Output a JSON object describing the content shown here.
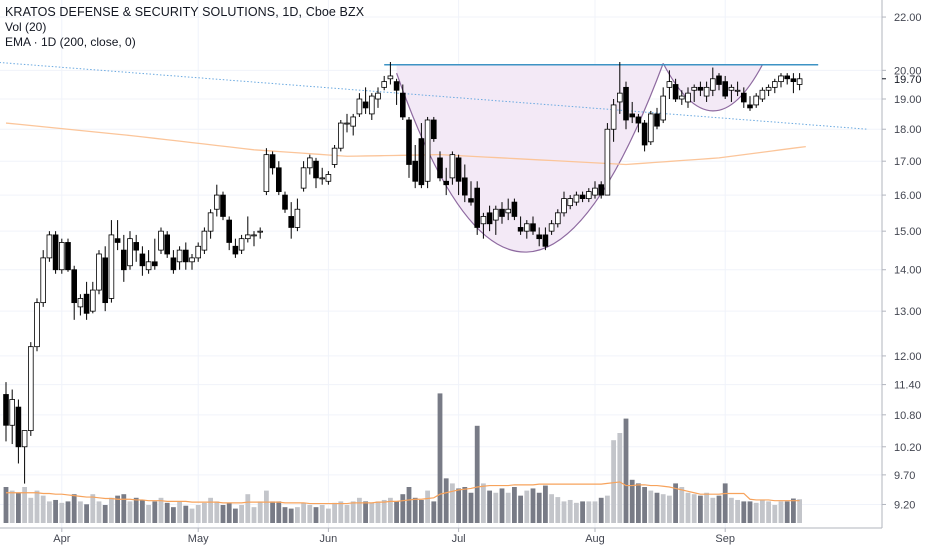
{
  "legend": {
    "title": "KRATOS DEFENSE & SECURITY SOLUTIONS, 1D, Cboe BZX",
    "vol": "Vol (20)",
    "ema": "EMA · 1D (200, close, 0)"
  },
  "colors": {
    "up_candle_fill": "#ffffff",
    "down_candle_fill": "#000000",
    "candle_border": "#000000",
    "volume_up": "#c3c5ca",
    "volume_down": "#787b86",
    "volume_ma": "#f7a35c",
    "ema200": "#fbc59a",
    "resistance": "#3d93c4",
    "trendline": "#6aa9e0",
    "cup_fill": "#f3e9f6",
    "cup_stroke": "#8e6aa0"
  },
  "chart_data": {
    "type": "candlestick",
    "title": "KRATOS DEFENSE & SECURITY SOLUTIONS, 1D, Cboe BZX",
    "scale": "log",
    "ylim": [
      8.9,
      22.6
    ],
    "y_ticks": [
      "22.00",
      "20.00",
      "19.00",
      "18.00",
      "17.00",
      "16.00",
      "15.00",
      "14.00",
      "13.00",
      "12.00",
      "11.40",
      "10.80",
      "10.20",
      "9.70",
      "9.20"
    ],
    "last_price": "19.70",
    "x_ticks": [
      "Apr",
      "May",
      "Jun",
      "Jul",
      "Aug",
      "Sep"
    ],
    "grid": true,
    "candles": [
      [
        11.2,
        11.45,
        10.3,
        10.6
      ],
      [
        10.6,
        11.3,
        10.25,
        11.1
      ],
      [
        10.95,
        11.1,
        9.9,
        10.2
      ],
      [
        10.2,
        10.4,
        9.55,
        10.5
      ],
      [
        10.5,
        12.3,
        10.4,
        12.2
      ],
      [
        12.2,
        13.3,
        12.1,
        13.2
      ],
      [
        13.2,
        14.5,
        13.1,
        14.3
      ],
      [
        14.3,
        15.0,
        14.2,
        14.9
      ],
      [
        14.9,
        15.0,
        13.9,
        14.0
      ],
      [
        14.0,
        14.8,
        13.9,
        14.7
      ],
      [
        14.7,
        14.8,
        13.95,
        14.0
      ],
      [
        14.0,
        14.1,
        12.8,
        13.2
      ],
      [
        13.1,
        13.4,
        12.9,
        13.3
      ],
      [
        13.4,
        13.7,
        12.8,
        12.95
      ],
      [
        13.0,
        13.7,
        12.95,
        13.5
      ],
      [
        13.5,
        14.5,
        13.4,
        14.4
      ],
      [
        14.3,
        14.6,
        13.0,
        13.2
      ],
      [
        13.3,
        15.3,
        13.2,
        14.9
      ],
      [
        14.8,
        15.3,
        14.5,
        14.7
      ],
      [
        14.5,
        14.9,
        13.7,
        14.0
      ],
      [
        14.1,
        15.0,
        14.0,
        14.8
      ],
      [
        14.7,
        14.9,
        14.2,
        14.5
      ],
      [
        14.4,
        14.6,
        13.85,
        14.1
      ],
      [
        14.0,
        14.5,
        13.9,
        14.2
      ],
      [
        14.2,
        14.8,
        14.0,
        14.1
      ],
      [
        14.5,
        15.1,
        14.4,
        15.0
      ],
      [
        14.9,
        15.0,
        14.3,
        14.4
      ],
      [
        14.3,
        14.5,
        13.9,
        14.0
      ],
      [
        14.2,
        14.6,
        14.0,
        14.5
      ],
      [
        14.5,
        14.7,
        14.0,
        14.2
      ],
      [
        14.2,
        14.4,
        14.0,
        14.3
      ],
      [
        14.3,
        14.7,
        14.2,
        14.6
      ],
      [
        14.5,
        15.1,
        14.4,
        15.0
      ],
      [
        15.0,
        15.6,
        14.8,
        15.5
      ],
      [
        15.6,
        16.3,
        15.4,
        16.0
      ],
      [
        16.0,
        16.1,
        15.3,
        15.4
      ],
      [
        15.3,
        15.4,
        14.5,
        14.7
      ],
      [
        14.6,
        14.8,
        14.3,
        14.4
      ],
      [
        14.5,
        14.9,
        14.4,
        14.8
      ],
      [
        14.8,
        15.4,
        14.7,
        14.9
      ],
      [
        14.9,
        15.0,
        14.6,
        14.9
      ],
      [
        15.0,
        15.1,
        14.8,
        15.0
      ],
      [
        16.1,
        17.4,
        16.0,
        17.2
      ],
      [
        17.2,
        17.3,
        16.6,
        16.8
      ],
      [
        16.8,
        17.0,
        16.0,
        16.1
      ],
      [
        16.0,
        16.1,
        15.5,
        15.6
      ],
      [
        15.4,
        15.8,
        14.8,
        15.1
      ],
      [
        15.1,
        15.9,
        15.0,
        15.6
      ],
      [
        16.2,
        17.0,
        16.1,
        16.8
      ],
      [
        16.8,
        17.2,
        16.6,
        17.1
      ],
      [
        17.0,
        17.1,
        16.2,
        16.5
      ],
      [
        16.5,
        16.8,
        16.3,
        16.5
      ],
      [
        16.4,
        16.7,
        16.3,
        16.6
      ],
      [
        16.9,
        17.5,
        16.8,
        17.4
      ],
      [
        17.4,
        18.3,
        17.3,
        18.2
      ],
      [
        18.2,
        18.5,
        17.9,
        18.2
      ],
      [
        18.1,
        18.5,
        17.8,
        18.4
      ],
      [
        18.5,
        19.2,
        18.4,
        19.0
      ],
      [
        18.9,
        19.4,
        18.5,
        18.7
      ],
      [
        18.5,
        19.2,
        18.3,
        19.1
      ],
      [
        19.0,
        19.4,
        18.7,
        19.2
      ],
      [
        19.4,
        19.8,
        19.3,
        19.6
      ],
      [
        19.7,
        20.3,
        19.5,
        19.8
      ],
      [
        19.6,
        19.7,
        18.8,
        19.3
      ],
      [
        19.2,
        19.5,
        18.3,
        18.4
      ],
      [
        18.3,
        18.4,
        16.5,
        16.9
      ],
      [
        17.0,
        17.5,
        16.2,
        16.4
      ],
      [
        17.7,
        18.2,
        16.2,
        16.3
      ],
      [
        16.4,
        18.4,
        16.2,
        18.3
      ],
      [
        18.3,
        18.4,
        17.6,
        17.7
      ],
      [
        17.1,
        17.3,
        16.4,
        16.5
      ],
      [
        16.4,
        16.8,
        16.0,
        16.3
      ],
      [
        16.5,
        17.3,
        16.3,
        17.2
      ],
      [
        17.1,
        17.2,
        16.0,
        16.4
      ],
      [
        16.5,
        16.9,
        15.8,
        16.0
      ],
      [
        15.9,
        16.4,
        15.7,
        15.8
      ],
      [
        16.2,
        16.4,
        14.9,
        15.1
      ],
      [
        15.2,
        15.5,
        14.8,
        15.4
      ],
      [
        15.5,
        15.7,
        15.0,
        15.2
      ],
      [
        15.3,
        15.7,
        14.9,
        15.6
      ],
      [
        15.6,
        15.8,
        15.2,
        15.4
      ],
      [
        15.5,
        15.9,
        15.3,
        15.6
      ],
      [
        15.8,
        15.9,
        15.3,
        15.4
      ],
      [
        15.1,
        15.4,
        14.9,
        15.0
      ],
      [
        15.0,
        15.3,
        14.8,
        15.2
      ],
      [
        15.2,
        15.4,
        14.9,
        15.0
      ],
      [
        14.9,
        15.1,
        14.6,
        14.8
      ],
      [
        14.9,
        15.1,
        14.5,
        14.6
      ],
      [
        15.0,
        15.3,
        14.9,
        15.2
      ],
      [
        15.2,
        15.6,
        15.1,
        15.5
      ],
      [
        15.5,
        16.1,
        15.4,
        15.9
      ],
      [
        15.7,
        16.0,
        15.6,
        15.9
      ],
      [
        15.8,
        16.1,
        15.7,
        16.0
      ],
      [
        16.0,
        16.1,
        15.8,
        15.9
      ],
      [
        15.9,
        16.2,
        15.8,
        16.1
      ],
      [
        16.0,
        16.4,
        15.9,
        16.2
      ],
      [
        16.3,
        16.4,
        15.9,
        16.0
      ],
      [
        16.0,
        18.2,
        16.0,
        18.0
      ],
      [
        18.0,
        19.0,
        17.6,
        18.8
      ],
      [
        18.9,
        20.3,
        18.5,
        19.2
      ],
      [
        19.4,
        19.6,
        18.0,
        18.3
      ],
      [
        18.5,
        18.9,
        18.2,
        18.4
      ],
      [
        18.4,
        18.5,
        17.9,
        18.2
      ],
      [
        18.2,
        18.3,
        17.3,
        17.5
      ],
      [
        17.6,
        18.6,
        17.5,
        18.5
      ],
      [
        18.5,
        18.7,
        18.0,
        18.1
      ],
      [
        18.3,
        19.4,
        18.2,
        19.1
      ],
      [
        19.4,
        20.0,
        19.0,
        19.6
      ],
      [
        19.5,
        19.7,
        18.9,
        19.0
      ],
      [
        19.0,
        19.3,
        18.8,
        19.1
      ],
      [
        18.9,
        19.4,
        18.7,
        19.2
      ],
      [
        19.3,
        19.5,
        18.9,
        19.4
      ],
      [
        19.4,
        19.6,
        19.1,
        19.3
      ],
      [
        19.1,
        19.6,
        18.9,
        19.4
      ],
      [
        19.3,
        20.1,
        19.1,
        19.7
      ],
      [
        19.8,
        19.9,
        19.3,
        19.5
      ],
      [
        19.6,
        19.8,
        19.0,
        19.1
      ],
      [
        19.3,
        19.5,
        18.9,
        19.4
      ],
      [
        19.3,
        19.6,
        19.1,
        19.3
      ],
      [
        19.2,
        19.4,
        18.7,
        18.9
      ],
      [
        18.8,
        19.1,
        18.6,
        18.7
      ],
      [
        18.8,
        19.2,
        18.7,
        19.1
      ],
      [
        19.0,
        19.4,
        18.9,
        19.3
      ],
      [
        19.3,
        19.5,
        19.1,
        19.4
      ],
      [
        19.4,
        19.7,
        19.2,
        19.6
      ],
      [
        19.6,
        19.9,
        19.4,
        19.8
      ],
      [
        19.8,
        19.9,
        19.5,
        19.7
      ],
      [
        19.7,
        19.9,
        19.2,
        19.6
      ],
      [
        19.5,
        19.9,
        19.3,
        19.7
      ]
    ],
    "volume": [
      0.5,
      0.45,
      0.42,
      0.5,
      0.35,
      0.45,
      0.38,
      0.3,
      0.32,
      0.28,
      0.3,
      0.4,
      0.3,
      0.26,
      0.4,
      0.3,
      0.25,
      0.35,
      0.38,
      0.4,
      0.3,
      0.35,
      0.32,
      0.25,
      0.3,
      0.35,
      0.28,
      0.22,
      0.3,
      0.24,
      0.2,
      0.25,
      0.28,
      0.35,
      0.3,
      0.25,
      0.28,
      0.2,
      0.25,
      0.4,
      0.22,
      0.3,
      0.45,
      0.3,
      0.3,
      0.22,
      0.2,
      0.22,
      0.28,
      0.25,
      0.22,
      0.25,
      0.2,
      0.28,
      0.3,
      0.25,
      0.3,
      0.35,
      0.3,
      0.28,
      0.3,
      0.32,
      0.35,
      0.3,
      0.4,
      0.5,
      0.35,
      0.32,
      0.45,
      0.3,
      1.8,
      0.62,
      0.55,
      0.48,
      0.5,
      0.42,
      1.35,
      0.55,
      0.45,
      0.42,
      0.48,
      0.42,
      0.5,
      0.38,
      0.45,
      0.48,
      0.42,
      0.52,
      0.4,
      0.36,
      0.3,
      0.32,
      0.28,
      0.3,
      0.3,
      0.3,
      0.35,
      0.38,
      1.15,
      1.25,
      1.45,
      0.6,
      0.55,
      0.5,
      0.45,
      0.42,
      0.4,
      0.38,
      0.55,
      0.5,
      0.42,
      0.4,
      0.38,
      0.42,
      0.35,
      0.38,
      0.55,
      0.35,
      0.32,
      0.3,
      0.3,
      0.28,
      0.32,
      0.3,
      0.25,
      0.3,
      0.3,
      0.34,
      0.33
    ],
    "ema200": [
      [
        0,
        18.2
      ],
      [
        20,
        17.8
      ],
      [
        40,
        17.35
      ],
      [
        55,
        17.15
      ],
      [
        70,
        17.2
      ],
      [
        85,
        17.05
      ],
      [
        100,
        16.9
      ],
      [
        115,
        17.1
      ],
      [
        129,
        17.45
      ]
    ],
    "volume_ma20": [
      0.42,
      0.42,
      0.42,
      0.42,
      0.42,
      0.42,
      0.41,
      0.41,
      0.4,
      0.4,
      0.39,
      0.38,
      0.37,
      0.36,
      0.36,
      0.35,
      0.34,
      0.34,
      0.33,
      0.33,
      0.33,
      0.32,
      0.32,
      0.31,
      0.31,
      0.31,
      0.3,
      0.3,
      0.3,
      0.3,
      0.29,
      0.29,
      0.29,
      0.29,
      0.29,
      0.28,
      0.28,
      0.28,
      0.28,
      0.29,
      0.29,
      0.29,
      0.29,
      0.29,
      0.29,
      0.28,
      0.28,
      0.28,
      0.28,
      0.27,
      0.27,
      0.27,
      0.27,
      0.27,
      0.27,
      0.27,
      0.28,
      0.28,
      0.28,
      0.28,
      0.29,
      0.29,
      0.3,
      0.3,
      0.31,
      0.32,
      0.33,
      0.33,
      0.34,
      0.35,
      0.4,
      0.42,
      0.44,
      0.46,
      0.47,
      0.48,
      0.5,
      0.51,
      0.52,
      0.52,
      0.52,
      0.52,
      0.53,
      0.53,
      0.53,
      0.53,
      0.54,
      0.54,
      0.54,
      0.54,
      0.54,
      0.54,
      0.54,
      0.54,
      0.54,
      0.54,
      0.54,
      0.55,
      0.56,
      0.57,
      0.52,
      0.52,
      0.53,
      0.53,
      0.52,
      0.52,
      0.51,
      0.5,
      0.48,
      0.46,
      0.44,
      0.42,
      0.4,
      0.4,
      0.4,
      0.4,
      0.41,
      0.41,
      0.41,
      0.41,
      0.33,
      0.32,
      0.32,
      0.32,
      0.31,
      0.31,
      0.31,
      0.31,
      0.31
    ],
    "resistance_level": 20.2,
    "trendline": [
      [
        -5,
        20.35
      ],
      [
        139,
        18.0
      ]
    ],
    "cup": {
      "left": [
        63,
        19.9
      ],
      "bottom": [
        84,
        14.45
      ],
      "right": [
        106,
        20.25
      ]
    },
    "handle": {
      "left": [
        106,
        20.25
      ],
      "bottom": [
        114,
        18.6
      ],
      "right": [
        122,
        20.2
      ]
    }
  }
}
